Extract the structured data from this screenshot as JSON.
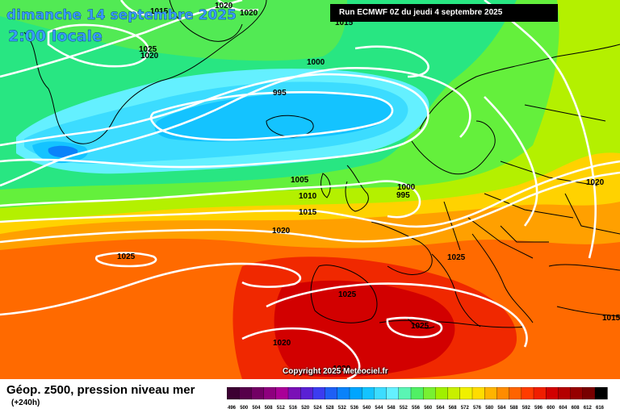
{
  "map": {
    "title_date": "dimanche 14 septembre 2025",
    "title_hour": "2:00 locale",
    "run_info": "Run ECMWF 0Z du jeudi 4 septembre 2025",
    "copyright": "Copyright 2025 Meteociel.fr",
    "param_title": "Géop. z500, pression niveau mer",
    "forecast_step": "(+240h)",
    "isobar_labels": [
      "1020",
      "1020",
      "1015",
      "1025",
      "1020",
      "1015",
      "1000",
      "995",
      "1005",
      "1010",
      "1015",
      "1000",
      "995",
      "1020",
      "1020",
      "1025",
      "1025",
      "1025",
      "1020",
      "1025",
      "1020",
      "1015"
    ]
  },
  "scale": {
    "values": [
      "496",
      "500",
      "504",
      "508",
      "512",
      "516",
      "520",
      "524",
      "528",
      "532",
      "536",
      "540",
      "544",
      "548",
      "552",
      "556",
      "560",
      "564",
      "568",
      "572",
      "576",
      "580",
      "584",
      "588",
      "592",
      "596",
      "600",
      "604",
      "608",
      "612",
      "616"
    ],
    "colors": [
      "#3c0032",
      "#56004a",
      "#720064",
      "#8e007e",
      "#aa0098",
      "#7a10b6",
      "#5a20d4",
      "#3c3cf0",
      "#1e5ff5",
      "#0a82fa",
      "#00a5ff",
      "#14c3ff",
      "#3cdcff",
      "#64f0ff",
      "#5af5b4",
      "#50f064",
      "#78f032",
      "#a0f000",
      "#c8f000",
      "#f0f000",
      "#ffdc00",
      "#ffb400",
      "#ff8c00",
      "#ff6400",
      "#ff3c00",
      "#f01e00",
      "#d20000",
      "#b40000",
      "#960000",
      "#780000",
      "#000000"
    ]
  }
}
